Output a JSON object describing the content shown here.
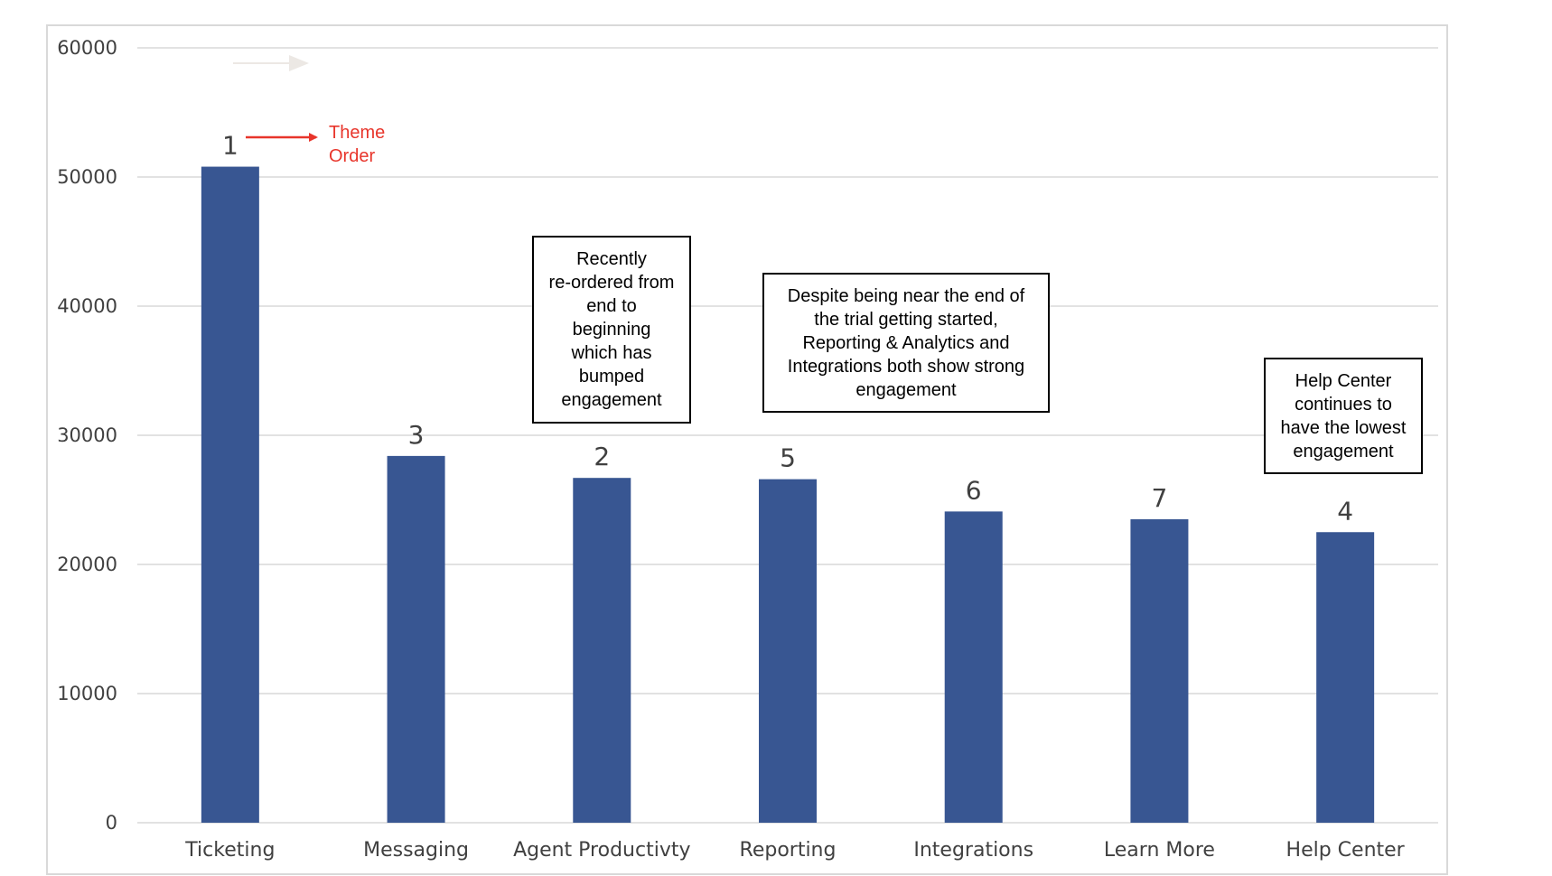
{
  "colors": {
    "bar": "#385692",
    "grid": "#d9d9d9",
    "axis_text": "#404040",
    "accent_red": "#e8352b",
    "frame": "#d9d9d9"
  },
  "chart_data": {
    "type": "bar",
    "title": "",
    "xlabel": "",
    "ylabel": "",
    "ylim": [
      0,
      60000
    ],
    "yticks": [
      0,
      10000,
      20000,
      30000,
      40000,
      50000,
      60000
    ],
    "grid": true,
    "categories": [
      "Ticketing",
      "Messaging",
      "Agent Productivty",
      "Reporting",
      "Integrations",
      "Learn More",
      "Help Center"
    ],
    "values": [
      50800,
      28400,
      26700,
      26600,
      24100,
      23500,
      22500
    ],
    "bar_labels": [
      "1",
      "3",
      "2",
      "5",
      "6",
      "7",
      "4"
    ],
    "annotations": [
      {
        "id": "theme_order",
        "text_lines": [
          "Theme",
          "Order"
        ]
      },
      {
        "id": "reorder_note",
        "text_lines": [
          "Recently",
          "re-ordered from",
          "end to",
          "beginning",
          "which has",
          "bumped",
          "engagement"
        ]
      },
      {
        "id": "reporting_note",
        "text_lines": [
          "Despite being near the end of",
          "the trial getting started,",
          "Reporting & Analytics and",
          "Integrations both show strong",
          "engagement"
        ]
      },
      {
        "id": "help_center_note",
        "text_lines": [
          "Help Center",
          "continues to",
          "have the lowest",
          "engagement"
        ]
      }
    ]
  }
}
